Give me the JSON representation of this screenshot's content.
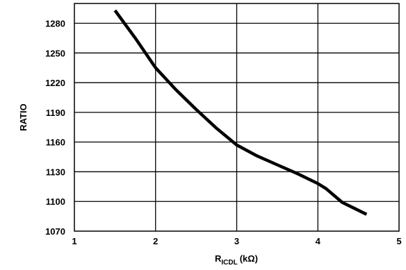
{
  "chart_data": {
    "type": "line",
    "title": "",
    "xlabel_main": "R",
    "xlabel_sub": "ICDL",
    "xlabel_unit": "(kΩ)",
    "ylabel": "RATIO",
    "xlim": [
      1,
      5
    ],
    "ylim": [
      1070,
      1300
    ],
    "x_ticks": [
      "1",
      "2",
      "3",
      "4",
      "5"
    ],
    "y_ticks": [
      "1070",
      "1100",
      "1130",
      "1160",
      "1190",
      "1220",
      "1250",
      "1280"
    ],
    "grid": true,
    "series": [
      {
        "x": [
          1.5,
          1.75,
          2.0,
          2.25,
          2.5,
          2.75,
          3.0,
          3.25,
          3.5,
          3.75,
          4.0,
          4.1,
          4.3,
          4.6
        ],
        "y": [
          1293,
          1265,
          1235,
          1213,
          1193,
          1174,
          1157,
          1146,
          1137,
          1128,
          1118,
          1113,
          1099,
          1087
        ]
      }
    ],
    "line_color": "#000000"
  }
}
